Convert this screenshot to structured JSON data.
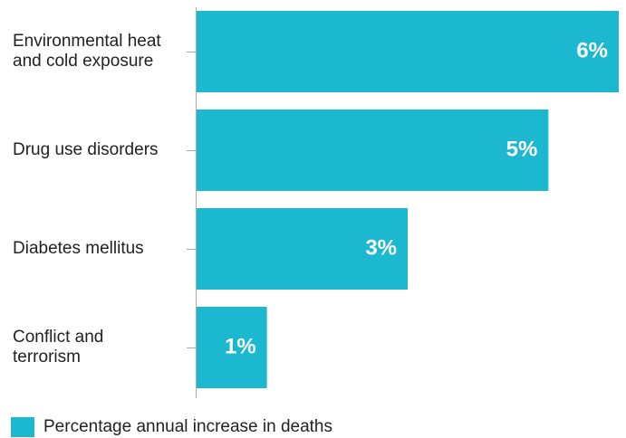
{
  "chart_data": {
    "type": "bar",
    "orientation": "horizontal",
    "categories": [
      [
        "Environmental heat",
        "and cold exposure"
      ],
      [
        "Drug use disorders"
      ],
      [
        "Diabetes mellitus"
      ],
      [
        "Conflict and",
        "terrorism"
      ]
    ],
    "series": [
      {
        "name": "Percentage annual increase in deaths",
        "values": [
          6,
          5,
          3,
          1
        ],
        "labels": [
          "6%",
          "5%",
          "3%",
          "1%"
        ],
        "color": "#1bb8cf"
      }
    ],
    "xlim": [
      0,
      6
    ],
    "grid": false,
    "legend_position": "bottom-left"
  },
  "colors": {
    "bar": "#1bb8cf",
    "axis": "#aaaaaa",
    "text": "#222222",
    "data_label": "#ffffff"
  }
}
